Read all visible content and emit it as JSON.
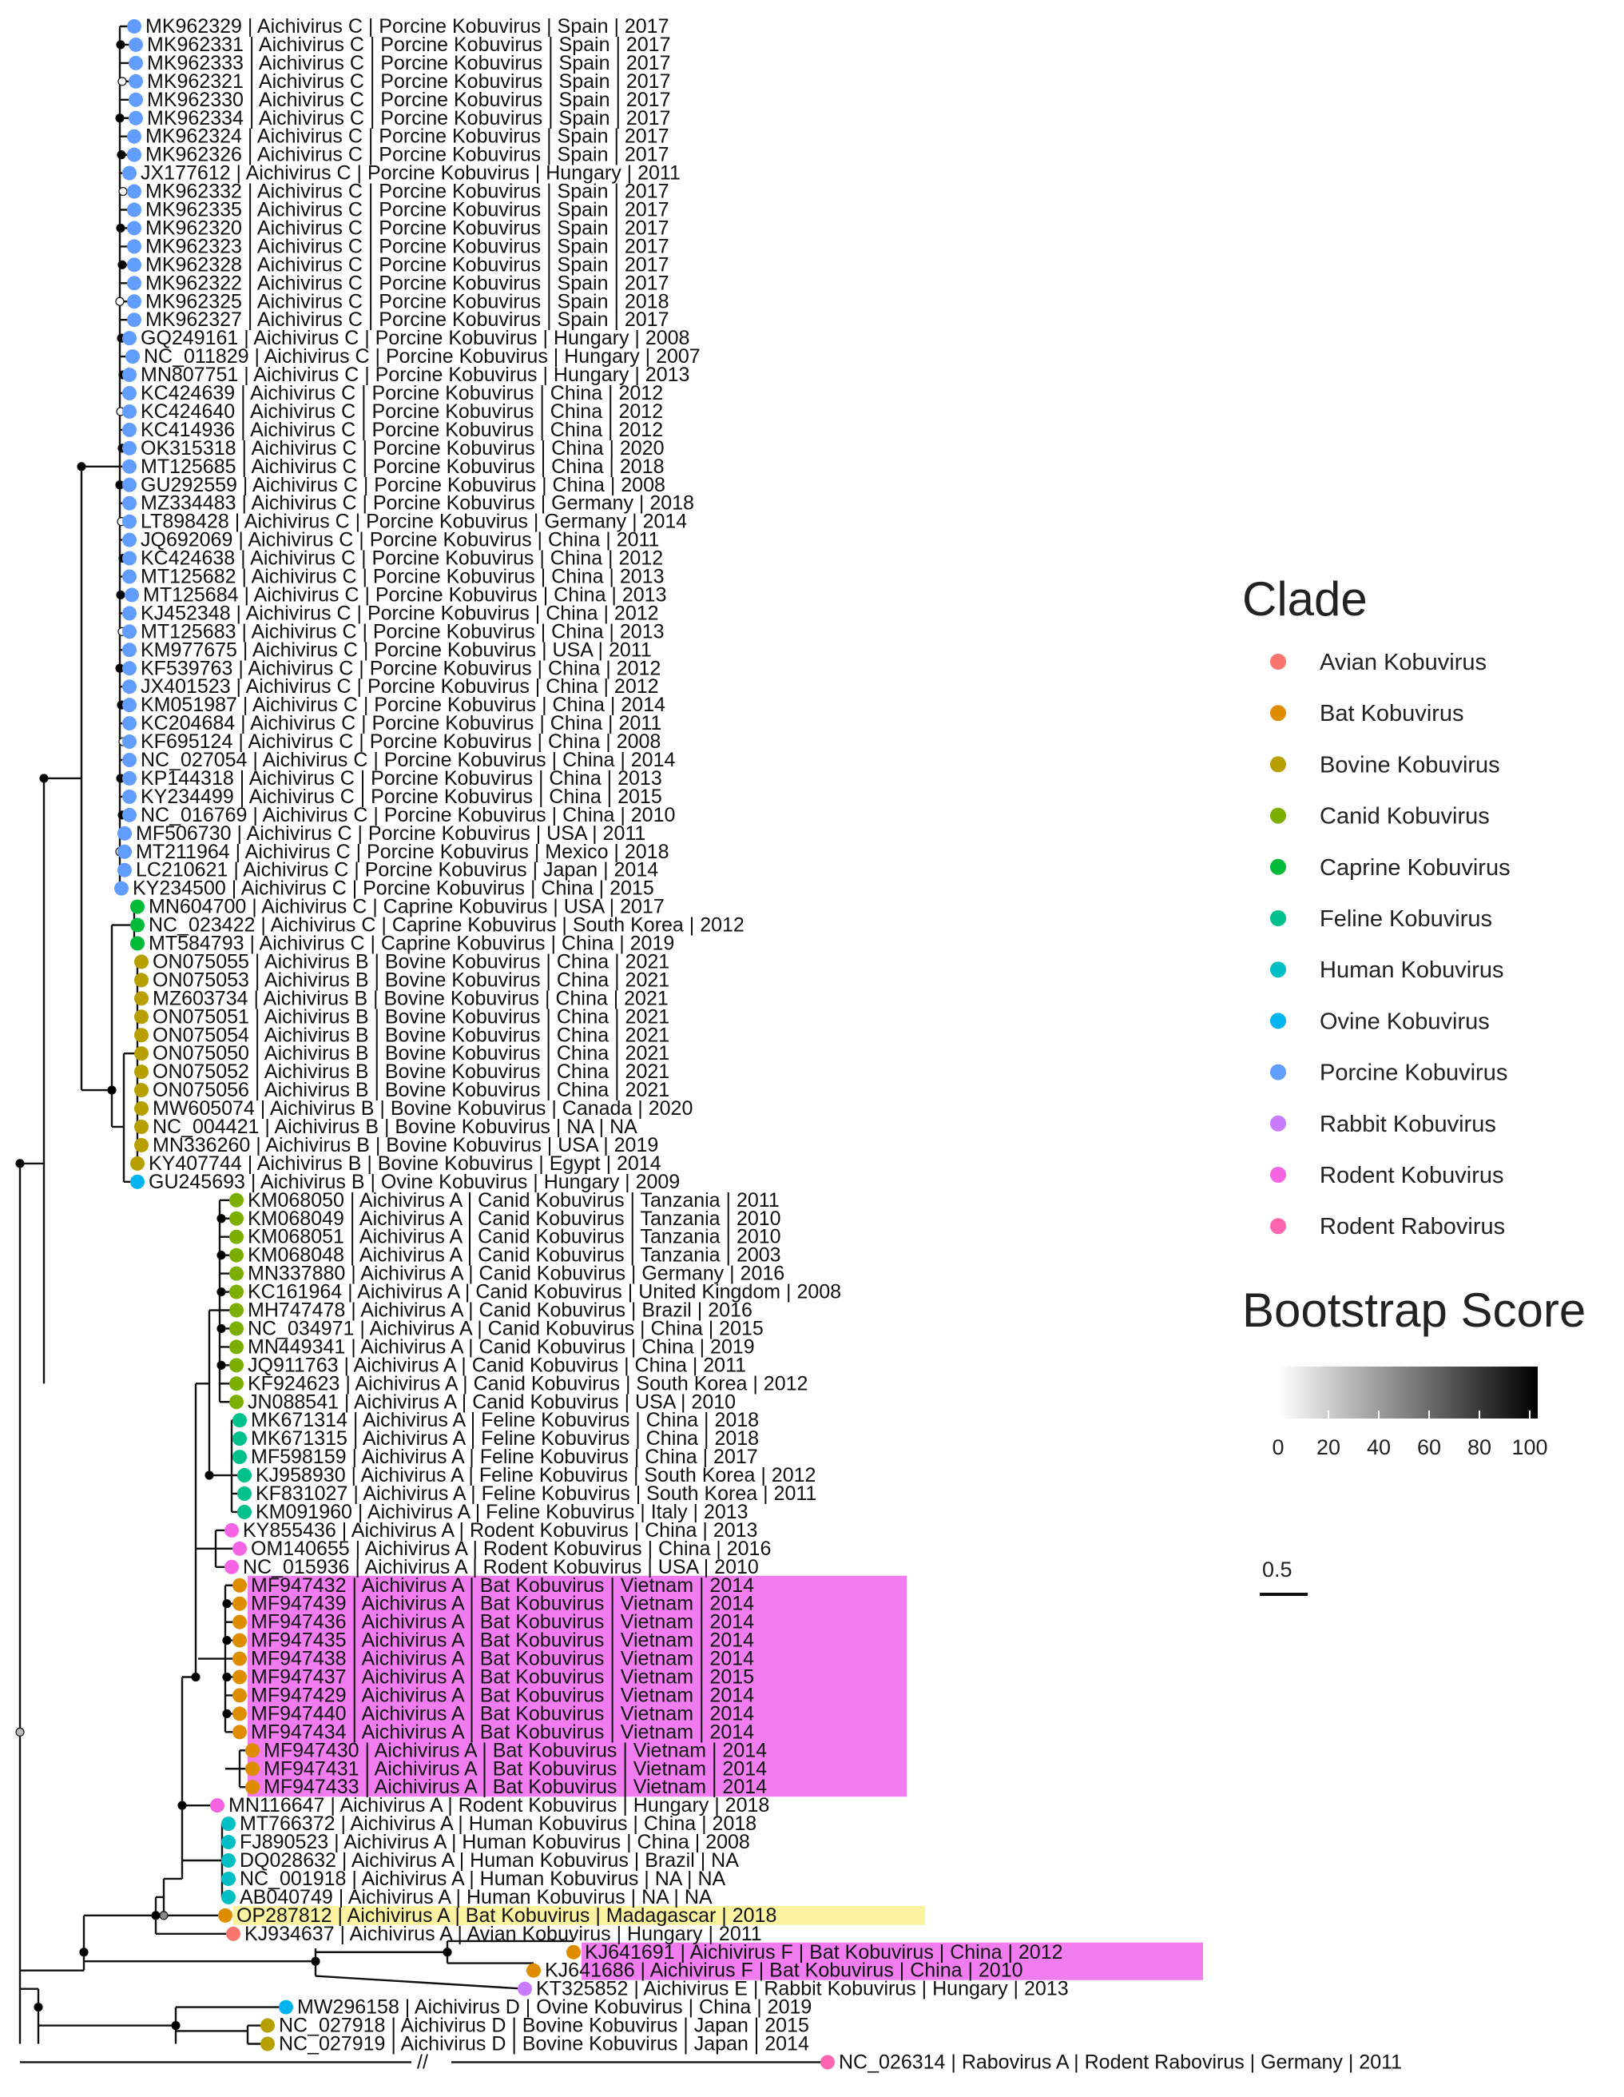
{
  "legend": {
    "clade_title": "Clade",
    "clades": [
      {
        "name": "Avian Kobuvirus",
        "color": "#F8766D"
      },
      {
        "name": "Bat Kobuvirus",
        "color": "#DE8C00"
      },
      {
        "name": "Bovine Kobuvirus",
        "color": "#B79F00"
      },
      {
        "name": "Canid Kobuvirus",
        "color": "#7CAE00"
      },
      {
        "name": "Caprine Kobuvirus",
        "color": "#00BA38"
      },
      {
        "name": "Feline Kobuvirus",
        "color": "#00C08B"
      },
      {
        "name": "Human Kobuvirus",
        "color": "#00BFC4"
      },
      {
        "name": "Ovine Kobuvirus",
        "color": "#00B4F0"
      },
      {
        "name": "Porcine Kobuvirus",
        "color": "#619CFF"
      },
      {
        "name": "Rabbit Kobuvirus",
        "color": "#C77CFF"
      },
      {
        "name": "Rodent Kobuvirus",
        "color": "#F564E3"
      },
      {
        "name": "Rodent Rabovirus",
        "color": "#FF64B0"
      }
    ],
    "bootstrap_title": "Bootstrap Score",
    "bootstrap_ticks": [
      "0",
      "20",
      "40",
      "60",
      "80",
      "100"
    ],
    "scale_label": "0.5"
  },
  "break_mark": "//",
  "highlight_colors": {
    "magenta": "#F07CF0",
    "yellow": "#FBF3A0"
  },
  "tips": [
    {
      "label": "MK962329 | Aichivirus C | Porcine Kobuvirus | Spain | 2017",
      "clade": "Porcine Kobuvirus"
    },
    {
      "label": "MK962331 | Aichivirus C | Porcine Kobuvirus | Spain | 2017",
      "clade": "Porcine Kobuvirus"
    },
    {
      "label": "MK962333 | Aichivirus C | Porcine Kobuvirus | Spain | 2017",
      "clade": "Porcine Kobuvirus"
    },
    {
      "label": "MK962321 | Aichivirus C | Porcine Kobuvirus | Spain | 2017",
      "clade": "Porcine Kobuvirus"
    },
    {
      "label": "MK962330 | Aichivirus C | Porcine Kobuvirus | Spain | 2017",
      "clade": "Porcine Kobuvirus"
    },
    {
      "label": "MK962334 | Aichivirus C | Porcine Kobuvirus | Spain | 2017",
      "clade": "Porcine Kobuvirus"
    },
    {
      "label": "MK962324 | Aichivirus C | Porcine Kobuvirus | Spain | 2017",
      "clade": "Porcine Kobuvirus"
    },
    {
      "label": "MK962326 | Aichivirus C | Porcine Kobuvirus | Spain | 2017",
      "clade": "Porcine Kobuvirus"
    },
    {
      "label": "JX177612 | Aichivirus C | Porcine Kobuvirus | Hungary | 2011",
      "clade": "Porcine Kobuvirus"
    },
    {
      "label": "MK962332 | Aichivirus C | Porcine Kobuvirus | Spain | 2017",
      "clade": "Porcine Kobuvirus"
    },
    {
      "label": "MK962335 | Aichivirus C | Porcine Kobuvirus | Spain | 2017",
      "clade": "Porcine Kobuvirus"
    },
    {
      "label": "MK962320 | Aichivirus C | Porcine Kobuvirus | Spain | 2017",
      "clade": "Porcine Kobuvirus"
    },
    {
      "label": "MK962323 | Aichivirus C | Porcine Kobuvirus | Spain | 2017",
      "clade": "Porcine Kobuvirus"
    },
    {
      "label": "MK962328 | Aichivirus C | Porcine Kobuvirus | Spain | 2017",
      "clade": "Porcine Kobuvirus"
    },
    {
      "label": "MK962322 | Aichivirus C | Porcine Kobuvirus | Spain | 2017",
      "clade": "Porcine Kobuvirus"
    },
    {
      "label": "MK962325 | Aichivirus C | Porcine Kobuvirus | Spain | 2018",
      "clade": "Porcine Kobuvirus"
    },
    {
      "label": "MK962327 | Aichivirus C | Porcine Kobuvirus | Spain | 2017",
      "clade": "Porcine Kobuvirus"
    },
    {
      "label": "GQ249161 | Aichivirus C | Porcine Kobuvirus | Hungary | 2008",
      "clade": "Porcine Kobuvirus"
    },
    {
      "label": "NC_011829 | Aichivirus C | Porcine Kobuvirus | Hungary | 2007",
      "clade": "Porcine Kobuvirus"
    },
    {
      "label": "MN807751 | Aichivirus C | Porcine Kobuvirus | Hungary | 2013",
      "clade": "Porcine Kobuvirus"
    },
    {
      "label": "KC424639 | Aichivirus C | Porcine Kobuvirus | China | 2012",
      "clade": "Porcine Kobuvirus"
    },
    {
      "label": "KC424640 | Aichivirus C | Porcine Kobuvirus | China | 2012",
      "clade": "Porcine Kobuvirus"
    },
    {
      "label": "KC414936 | Aichivirus C | Porcine Kobuvirus | China | 2012",
      "clade": "Porcine Kobuvirus"
    },
    {
      "label": "OK315318 | Aichivirus C | Porcine Kobuvirus | China | 2020",
      "clade": "Porcine Kobuvirus"
    },
    {
      "label": "MT125685 | Aichivirus C | Porcine Kobuvirus | China | 2018",
      "clade": "Porcine Kobuvirus"
    },
    {
      "label": "GU292559 | Aichivirus C | Porcine Kobuvirus | China | 2008",
      "clade": "Porcine Kobuvirus"
    },
    {
      "label": "MZ334483 | Aichivirus C | Porcine Kobuvirus | Germany | 2018",
      "clade": "Porcine Kobuvirus"
    },
    {
      "label": "LT898428 | Aichivirus C | Porcine Kobuvirus | Germany | 2014",
      "clade": "Porcine Kobuvirus"
    },
    {
      "label": "JQ692069 | Aichivirus C | Porcine Kobuvirus | China | 2011",
      "clade": "Porcine Kobuvirus"
    },
    {
      "label": "KC424638 | Aichivirus C | Porcine Kobuvirus | China | 2012",
      "clade": "Porcine Kobuvirus"
    },
    {
      "label": "MT125682 | Aichivirus C | Porcine Kobuvirus | China | 2013",
      "clade": "Porcine Kobuvirus"
    },
    {
      "label": "MT125684 | Aichivirus C | Porcine Kobuvirus | China | 2013",
      "clade": "Porcine Kobuvirus"
    },
    {
      "label": "KJ452348 | Aichivirus C | Porcine Kobuvirus | China | 2012",
      "clade": "Porcine Kobuvirus"
    },
    {
      "label": "MT125683 | Aichivirus C | Porcine Kobuvirus | China | 2013",
      "clade": "Porcine Kobuvirus"
    },
    {
      "label": "KM977675 | Aichivirus C | Porcine Kobuvirus | USA | 2011",
      "clade": "Porcine Kobuvirus"
    },
    {
      "label": "KF539763 | Aichivirus C | Porcine Kobuvirus | China | 2012",
      "clade": "Porcine Kobuvirus"
    },
    {
      "label": "JX401523 | Aichivirus C | Porcine Kobuvirus | China | 2012",
      "clade": "Porcine Kobuvirus"
    },
    {
      "label": "KM051987 | Aichivirus C | Porcine Kobuvirus | China | 2014",
      "clade": "Porcine Kobuvirus"
    },
    {
      "label": "KC204684 | Aichivirus C | Porcine Kobuvirus | China | 2011",
      "clade": "Porcine Kobuvirus"
    },
    {
      "label": "KF695124 | Aichivirus C | Porcine Kobuvirus | China | 2008",
      "clade": "Porcine Kobuvirus"
    },
    {
      "label": "NC_027054 | Aichivirus C | Porcine Kobuvirus | China | 2014",
      "clade": "Porcine Kobuvirus"
    },
    {
      "label": "KP144318 | Aichivirus C | Porcine Kobuvirus | China | 2013",
      "clade": "Porcine Kobuvirus"
    },
    {
      "label": "KY234499 | Aichivirus C | Porcine Kobuvirus | China | 2015",
      "clade": "Porcine Kobuvirus"
    },
    {
      "label": "NC_016769 | Aichivirus C | Porcine Kobuvirus | China | 2010",
      "clade": "Porcine Kobuvirus"
    },
    {
      "label": "MF506730 | Aichivirus C | Porcine Kobuvirus | USA | 2011",
      "clade": "Porcine Kobuvirus"
    },
    {
      "label": "MT211964 | Aichivirus C | Porcine Kobuvirus | Mexico | 2018",
      "clade": "Porcine Kobuvirus"
    },
    {
      "label": "LC210621 | Aichivirus C | Porcine Kobuvirus | Japan | 2014",
      "clade": "Porcine Kobuvirus"
    },
    {
      "label": "KY234500 | Aichivirus C | Porcine Kobuvirus | China | 2015",
      "clade": "Porcine Kobuvirus"
    },
    {
      "label": "MN604700 | Aichivirus C | Caprine Kobuvirus | USA | 2017",
      "clade": "Caprine Kobuvirus"
    },
    {
      "label": "NC_023422 | Aichivirus C | Caprine Kobuvirus | South Korea | 2012",
      "clade": "Caprine Kobuvirus"
    },
    {
      "label": "MT584793 | Aichivirus C | Caprine Kobuvirus | China | 2019",
      "clade": "Caprine Kobuvirus"
    },
    {
      "label": "ON075055 | Aichivirus B | Bovine Kobuvirus | China | 2021",
      "clade": "Bovine Kobuvirus"
    },
    {
      "label": "ON075053 | Aichivirus B | Bovine Kobuvirus | China | 2021",
      "clade": "Bovine Kobuvirus"
    },
    {
      "label": "MZ603734 | Aichivirus B | Bovine Kobuvirus | China | 2021",
      "clade": "Bovine Kobuvirus"
    },
    {
      "label": "ON075051 | Aichivirus B | Bovine Kobuvirus | China | 2021",
      "clade": "Bovine Kobuvirus"
    },
    {
      "label": "ON075054 | Aichivirus B | Bovine Kobuvirus | China | 2021",
      "clade": "Bovine Kobuvirus"
    },
    {
      "label": "ON075050 | Aichivirus B | Bovine Kobuvirus | China | 2021",
      "clade": "Bovine Kobuvirus"
    },
    {
      "label": "ON075052 | Aichivirus B | Bovine Kobuvirus | China | 2021",
      "clade": "Bovine Kobuvirus"
    },
    {
      "label": "ON075056 | Aichivirus B | Bovine Kobuvirus | China | 2021",
      "clade": "Bovine Kobuvirus"
    },
    {
      "label": "MW605074 | Aichivirus B | Bovine Kobuvirus | Canada | 2020",
      "clade": "Bovine Kobuvirus"
    },
    {
      "label": "NC_004421 | Aichivirus B | Bovine Kobuvirus | NA | NA",
      "clade": "Bovine Kobuvirus"
    },
    {
      "label": "MN336260 | Aichivirus B | Bovine Kobuvirus | USA | 2019",
      "clade": "Bovine Kobuvirus"
    },
    {
      "label": "KY407744 | Aichivirus B | Bovine Kobuvirus | Egypt | 2014",
      "clade": "Bovine Kobuvirus"
    },
    {
      "label": "GU245693 | Aichivirus B | Ovine Kobuvirus | Hungary | 2009",
      "clade": "Ovine Kobuvirus"
    },
    {
      "label": "KM068050 | Aichivirus A | Canid Kobuvirus | Tanzania | 2011",
      "clade": "Canid Kobuvirus"
    },
    {
      "label": "KM068049 | Aichivirus A | Canid Kobuvirus | Tanzania | 2010",
      "clade": "Canid Kobuvirus"
    },
    {
      "label": "KM068051 | Aichivirus A | Canid Kobuvirus | Tanzania | 2010",
      "clade": "Canid Kobuvirus"
    },
    {
      "label": "KM068048 | Aichivirus A | Canid Kobuvirus | Tanzania | 2003",
      "clade": "Canid Kobuvirus"
    },
    {
      "label": "MN337880 | Aichivirus A | Canid Kobuvirus | Germany | 2016",
      "clade": "Canid Kobuvirus"
    },
    {
      "label": "KC161964 | Aichivirus A | Canid Kobuvirus | United Kingdom | 2008",
      "clade": "Canid Kobuvirus"
    },
    {
      "label": "MH747478 | Aichivirus A | Canid Kobuvirus | Brazil | 2016",
      "clade": "Canid Kobuvirus"
    },
    {
      "label": "NC_034971 | Aichivirus A | Canid Kobuvirus | China | 2015",
      "clade": "Canid Kobuvirus"
    },
    {
      "label": "MN449341 | Aichivirus A | Canid Kobuvirus | China | 2019",
      "clade": "Canid Kobuvirus"
    },
    {
      "label": "JQ911763 | Aichivirus A | Canid Kobuvirus | China | 2011",
      "clade": "Canid Kobuvirus"
    },
    {
      "label": "KF924623 | Aichivirus A | Canid Kobuvirus | South Korea | 2012",
      "clade": "Canid Kobuvirus"
    },
    {
      "label": "JN088541 | Aichivirus A | Canid Kobuvirus | USA | 2010",
      "clade": "Canid Kobuvirus"
    },
    {
      "label": "MK671314 | Aichivirus A | Feline Kobuvirus | China | 2018",
      "clade": "Feline Kobuvirus"
    },
    {
      "label": "MK671315 | Aichivirus A | Feline Kobuvirus | China | 2018",
      "clade": "Feline Kobuvirus"
    },
    {
      "label": "MF598159 | Aichivirus A | Feline Kobuvirus | China | 2017",
      "clade": "Feline Kobuvirus"
    },
    {
      "label": "KJ958930 | Aichivirus A | Feline Kobuvirus | South Korea | 2012",
      "clade": "Feline Kobuvirus"
    },
    {
      "label": "KF831027 | Aichivirus A | Feline Kobuvirus | South Korea | 2011",
      "clade": "Feline Kobuvirus"
    },
    {
      "label": "KM091960 | Aichivirus A | Feline Kobuvirus | Italy | 2013",
      "clade": "Feline Kobuvirus"
    },
    {
      "label": "KY855436 | Aichivirus A | Rodent Kobuvirus | China | 2013",
      "clade": "Rodent Kobuvirus"
    },
    {
      "label": "OM140655 | Aichivirus A | Rodent Kobuvirus | China | 2016",
      "clade": "Rodent Kobuvirus"
    },
    {
      "label": "NC_015936 | Aichivirus A | Rodent Kobuvirus | USA | 2010",
      "clade": "Rodent Kobuvirus"
    },
    {
      "label": "MF947432 | Aichivirus A | Bat Kobuvirus | Vietnam | 2014",
      "clade": "Bat Kobuvirus"
    },
    {
      "label": "MF947439 | Aichivirus A | Bat Kobuvirus | Vietnam | 2014",
      "clade": "Bat Kobuvirus"
    },
    {
      "label": "MF947436 | Aichivirus A | Bat Kobuvirus | Vietnam | 2014",
      "clade": "Bat Kobuvirus"
    },
    {
      "label": "MF947435 | Aichivirus A | Bat Kobuvirus | Vietnam | 2014",
      "clade": "Bat Kobuvirus"
    },
    {
      "label": "MF947438 | Aichivirus A | Bat Kobuvirus | Vietnam | 2014",
      "clade": "Bat Kobuvirus"
    },
    {
      "label": "MF947437 | Aichivirus A | Bat Kobuvirus | Vietnam | 2015",
      "clade": "Bat Kobuvirus"
    },
    {
      "label": "MF947429 | Aichivirus A | Bat Kobuvirus | Vietnam | 2014",
      "clade": "Bat Kobuvirus"
    },
    {
      "label": "MF947440 | Aichivirus A | Bat Kobuvirus | Vietnam | 2014",
      "clade": "Bat Kobuvirus"
    },
    {
      "label": "MF947434 | Aichivirus A | Bat Kobuvirus | Vietnam | 2014",
      "clade": "Bat Kobuvirus"
    },
    {
      "label": "MF947430 | Aichivirus A | Bat Kobuvirus | Vietnam | 2014",
      "clade": "Bat Kobuvirus"
    },
    {
      "label": "MF947431 | Aichivirus A | Bat Kobuvirus | Vietnam | 2014",
      "clade": "Bat Kobuvirus"
    },
    {
      "label": "MF947433 | Aichivirus A | Bat Kobuvirus | Vietnam | 2014",
      "clade": "Bat Kobuvirus"
    },
    {
      "label": "MN116647 | Aichivirus A | Rodent Kobuvirus | Hungary | 2018",
      "clade": "Rodent Kobuvirus"
    },
    {
      "label": "MT766372 | Aichivirus A | Human Kobuvirus | China | 2018",
      "clade": "Human Kobuvirus"
    },
    {
      "label": "FJ890523 | Aichivirus A | Human Kobuvirus | China | 2008",
      "clade": "Human Kobuvirus"
    },
    {
      "label": "DQ028632 | Aichivirus A | Human Kobuvirus | Brazil | NA",
      "clade": "Human Kobuvirus"
    },
    {
      "label": "NC_001918 | Aichivirus A | Human Kobuvirus | NA | NA",
      "clade": "Human Kobuvirus"
    },
    {
      "label": "AB040749 | Aichivirus A | Human Kobuvirus | NA | NA",
      "clade": "Human Kobuvirus"
    },
    {
      "label": "OP287812 | Aichivirus A | Bat Kobuvirus | Madagascar | 2018",
      "clade": "Bat Kobuvirus"
    },
    {
      "label": "KJ934637 | Aichivirus A | Avian Kobuvirus | Hungary | 2011",
      "clade": "Avian Kobuvirus"
    },
    {
      "label": "KJ641691 | Aichivirus F | Bat Kobuvirus | China | 2012",
      "clade": "Bat Kobuvirus"
    },
    {
      "label": "KJ641686 | Aichivirus F | Bat Kobuvirus | China | 2010",
      "clade": "Bat Kobuvirus"
    },
    {
      "label": "KT325852 | Aichivirus E | Rabbit Kobuvirus | Hungary | 2013",
      "clade": "Rabbit Kobuvirus"
    },
    {
      "label": "MW296158 | Aichivirus D | Ovine Kobuvirus | China | 2019",
      "clade": "Ovine Kobuvirus"
    },
    {
      "label": "NC_027918 | Aichivirus D | Bovine Kobuvirus | Japan | 2015",
      "clade": "Bovine Kobuvirus"
    },
    {
      "label": "NC_027919 | Aichivirus D | Bovine Kobuvirus | Japan | 2014",
      "clade": "Bovine Kobuvirus"
    },
    {
      "label": "NC_026314 | Rabovirus A | Rodent Rabovirus | Germany | 2011",
      "clade": "Rodent Rabovirus"
    }
  ]
}
